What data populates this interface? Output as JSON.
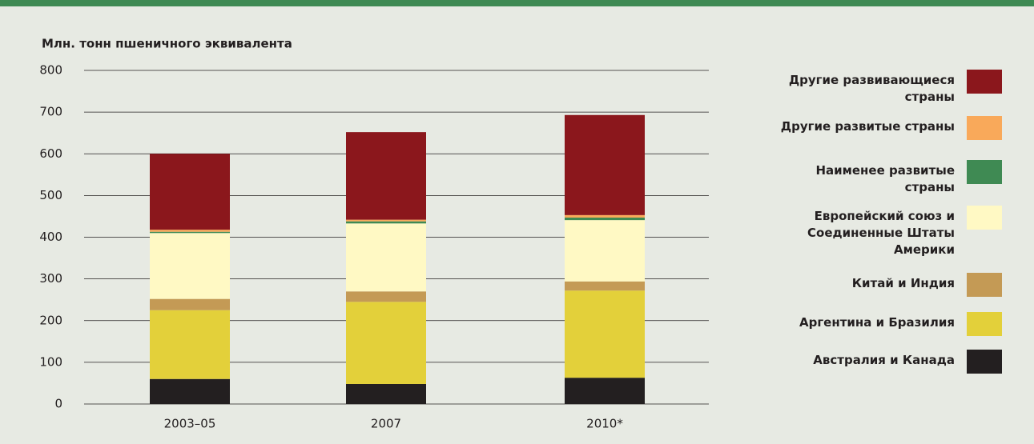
{
  "chart_data": {
    "type": "stacked_bar",
    "title": "Млн. тонн пшеничного эквивалента",
    "categories": [
      "2003–05",
      "2007",
      "2010*"
    ],
    "series": [
      {
        "name": "Австралия и Канада",
        "color": "#231f20",
        "values": [
          60,
          48,
          63
        ]
      },
      {
        "name": "Аргентина и Бразилия",
        "color": "#e3d03a",
        "values": [
          165,
          197,
          209
        ]
      },
      {
        "name": "Китай и Индия",
        "color": "#c49a55",
        "values": [
          27,
          25,
          22
        ]
      },
      {
        "name": "Европейский союз и Соединенные Штаты Америки",
        "color": "#fff9c4",
        "values": [
          158,
          163,
          147
        ]
      },
      {
        "name": "Наименее развитые страны",
        "color": "#3f8a53",
        "values": [
          3,
          5,
          6
        ]
      },
      {
        "name": "Другие развитые страны",
        "color": "#f9a95a",
        "values": [
          5,
          4,
          6
        ]
      },
      {
        "name": "Другие развивающиеся страны",
        "color": "#8b171c",
        "values": [
          182,
          210,
          240
        ]
      }
    ],
    "ylim": [
      0,
      800
    ],
    "yticks": [
      0,
      100,
      200,
      300,
      400,
      500,
      600,
      700,
      800
    ],
    "grid": true
  }
}
